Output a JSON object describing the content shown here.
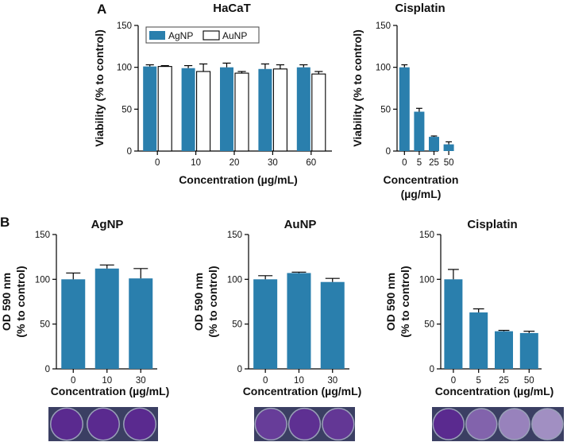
{
  "panel_labels": {
    "a": "A",
    "b": "B"
  },
  "colors": {
    "agnp": "#2a7fad",
    "aunp": "#ffffff",
    "stain_dark": "#5a2a8f",
    "stain_light": "#b3a8cf",
    "well_bg": "#3b3f63"
  },
  "chart_data": [
    {
      "id": "a_hacat",
      "type": "bar",
      "title": "HaCaT",
      "xlabel": "Concentration (µg/mL)",
      "ylabel": "Viability (% to control)",
      "categories": [
        "0",
        "10",
        "20",
        "30",
        "60"
      ],
      "ylim": [
        0,
        150
      ],
      "yticks": [
        "0",
        "50",
        "100",
        "150"
      ],
      "legend": {
        "position": "top-left",
        "entries": [
          "AgNP",
          "AuNP"
        ]
      },
      "series": [
        {
          "name": "AgNP",
          "values": [
            101,
            99,
            100,
            98,
            100
          ],
          "errors": [
            2,
            3,
            5,
            6,
            3
          ]
        },
        {
          "name": "AuNP",
          "values": [
            101,
            95,
            93,
            98,
            92
          ],
          "errors": [
            1,
            9,
            2,
            5,
            3
          ]
        }
      ]
    },
    {
      "id": "a_cisplatin",
      "type": "bar",
      "title": "Cisplatin",
      "xlabel": [
        "Concentration",
        "(µg/mL)"
      ],
      "ylabel": "Viability (% to control)",
      "categories": [
        "0",
        "5",
        "25",
        "50"
      ],
      "ylim": [
        0,
        150
      ],
      "yticks": [
        "0",
        "50",
        "100",
        "150"
      ],
      "series": [
        {
          "name": "Cisplatin",
          "values": [
            100,
            47,
            17,
            8
          ],
          "errors": [
            3,
            4,
            1,
            3
          ]
        }
      ]
    },
    {
      "id": "b_agnp",
      "type": "bar",
      "title": "AgNP",
      "xlabel": "Concentration (µg/mL)",
      "ylabel": [
        "OD 590 nm",
        "(% to control)"
      ],
      "categories": [
        "0",
        "10",
        "30"
      ],
      "ylim": [
        0,
        150
      ],
      "yticks": [
        "0",
        "50",
        "100",
        "150"
      ],
      "series": [
        {
          "name": "AgNP",
          "values": [
            100,
            112,
            101
          ],
          "errors": [
            7,
            4,
            11
          ]
        }
      ]
    },
    {
      "id": "b_aunp",
      "type": "bar",
      "title": "AuNP",
      "xlabel": "Concentration (µg/mL)",
      "ylabel": [
        "OD 590 nm",
        "(% to control)"
      ],
      "categories": [
        "0",
        "10",
        "30"
      ],
      "ylim": [
        0,
        150
      ],
      "yticks": [
        "0",
        "50",
        "100",
        "150"
      ],
      "series": [
        {
          "name": "AuNP",
          "values": [
            100,
            107,
            97
          ],
          "errors": [
            4,
            1,
            4
          ]
        }
      ]
    },
    {
      "id": "b_cisplatin",
      "type": "bar",
      "title": "Cisplatin",
      "xlabel": "Concentration (µg/mL)",
      "ylabel": [
        "OD 590 nm",
        "(% to control)"
      ],
      "categories": [
        "0",
        "5",
        "25",
        "50"
      ],
      "ylim": [
        0,
        150
      ],
      "yticks": [
        "0",
        "50",
        "100",
        "150"
      ],
      "series": [
        {
          "name": "Cisplatin",
          "values": [
            100,
            63,
            42,
            40
          ],
          "errors": [
            11,
            4,
            1,
            2
          ]
        }
      ]
    }
  ],
  "well_images": [
    {
      "id": "b_agnp",
      "well_stain": [
        1.0,
        1.0,
        1.0
      ]
    },
    {
      "id": "b_aunp",
      "well_stain": [
        0.85,
        0.95,
        0.9
      ]
    },
    {
      "id": "b_cisplatin",
      "well_stain": [
        1.0,
        0.55,
        0.3,
        0.2
      ]
    }
  ]
}
